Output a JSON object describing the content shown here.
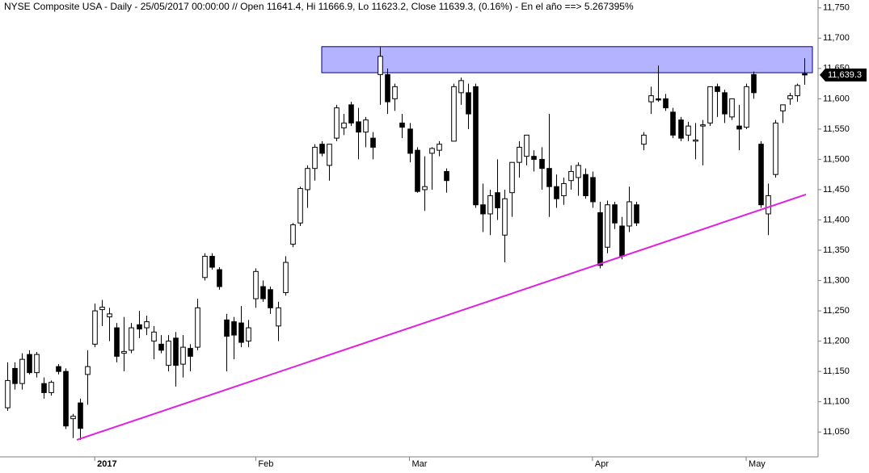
{
  "chart_data": {
    "type": "candlestick",
    "title": "NYSE Composite USA - Daily - 25/05/2017 00:00:00 // Open 11641.4, Hi 11666.9, Lo 11623.2, Close 11639.3, (0.16%) - En el año ==> 5.267395%",
    "categories": [
      null,
      null,
      null,
      null,
      null,
      null,
      null,
      null,
      null,
      null,
      null,
      null,
      "2017",
      null,
      null,
      null,
      null,
      null,
      null,
      null,
      null,
      null,
      null,
      null,
      null,
      null,
      null,
      null,
      null,
      null,
      null,
      null,
      null,
      null,
      "Feb",
      null,
      null,
      null,
      null,
      null,
      null,
      null,
      null,
      null,
      null,
      null,
      null,
      null,
      null,
      null,
      null,
      null,
      null,
      null,
      null,
      "Mar",
      null,
      null,
      null,
      null,
      null,
      null,
      null,
      null,
      null,
      null,
      null,
      null,
      null,
      null,
      null,
      null,
      null,
      null,
      null,
      null,
      null,
      null,
      null,
      null,
      "Apr",
      null,
      null,
      null,
      null,
      null,
      null,
      null,
      null,
      null,
      null,
      null,
      null,
      null,
      null,
      null,
      null,
      null,
      null,
      null,
      null,
      "May",
      null,
      null,
      null,
      null,
      null,
      null,
      null,
      null
    ],
    "open": [
      11090,
      11155,
      11130,
      11178,
      11148,
      11130,
      11115,
      11158,
      11150,
      11072,
      11098,
      11145,
      11195,
      11252,
      11240,
      11222,
      11180,
      11185,
      11227,
      11222,
      11200,
      11195,
      11160,
      11205,
      11162,
      11188,
      11190,
      11305,
      11340,
      11318,
      11235,
      11232,
      11230,
      11200,
      11270,
      11290,
      11285,
      11225,
      11280,
      11360,
      11395,
      11450,
      11485,
      11525,
      11490,
      11535,
      11552,
      11590,
      11562,
      11545,
      11535,
      11640,
      11640,
      11600,
      11560,
      11550,
      11515,
      11450,
      11510,
      11515,
      11480,
      11530,
      11610,
      11610,
      11620,
      11425,
      11410,
      11445,
      11375,
      11445,
      11495,
      11505,
      11505,
      11500,
      11485,
      11455,
      11440,
      11465,
      11470,
      11475,
      11470,
      11412,
      11355,
      11425,
      11390,
      11390,
      11425,
      11525,
      11595,
      11600,
      11600,
      11578,
      11565,
      11540,
      11530,
      11555,
      11560,
      11620,
      11610,
      11570,
      11555,
      11553,
      11640,
      11525,
      11410,
      11475,
      11580,
      11600,
      11605,
      11641.4
    ],
    "high": [
      11165,
      11165,
      11180,
      11185,
      11182,
      11140,
      11135,
      11162,
      11155,
      11080,
      11105,
      11185,
      11262,
      11268,
      11255,
      11230,
      11240,
      11230,
      11250,
      11242,
      11225,
      11210,
      11210,
      11215,
      11210,
      11195,
      11270,
      11345,
      11345,
      11322,
      11245,
      11240,
      11258,
      11235,
      11320,
      11300,
      11290,
      11265,
      11340,
      11395,
      11455,
      11490,
      11525,
      11530,
      11525,
      11590,
      11575,
      11595,
      11585,
      11570,
      11545,
      11685,
      11650,
      11625,
      11575,
      11560,
      11520,
      11505,
      11520,
      11530,
      11485,
      11625,
      11635,
      11625,
      11625,
      11460,
      11450,
      11500,
      11450,
      11495,
      11530,
      11540,
      11515,
      11520,
      11575,
      11475,
      11470,
      11490,
      11495,
      11485,
      11480,
      11430,
      11432,
      11430,
      11405,
      11455,
      11430,
      11545,
      11620,
      11655,
      11608,
      11585,
      11570,
      11562,
      11560,
      11565,
      11620,
      11625,
      11615,
      11600,
      11590,
      11625,
      11645,
      11530,
      11460,
      11565,
      11590,
      11610,
      11625,
      11666.9
    ],
    "low": [
      11085,
      11120,
      11120,
      11145,
      11140,
      11105,
      11110,
      11145,
      11055,
      11040,
      11037,
      11095,
      11190,
      11225,
      11200,
      11165,
      11150,
      11180,
      11205,
      11210,
      11170,
      11180,
      11150,
      11125,
      11140,
      11150,
      11185,
      11300,
      11318,
      11285,
      11150,
      11170,
      11190,
      11190,
      11255,
      11265,
      11245,
      11200,
      11275,
      11355,
      11390,
      11420,
      11465,
      11505,
      11465,
      11530,
      11540,
      11555,
      11500,
      11520,
      11500,
      11590,
      11575,
      11580,
      11535,
      11495,
      11445,
      11415,
      11450,
      11505,
      11445,
      11530,
      11590,
      11550,
      11420,
      11380,
      11375,
      11400,
      11330,
      11405,
      11470,
      11490,
      11480,
      11450,
      11405,
      11420,
      11425,
      11450,
      11440,
      11435,
      11420,
      11320,
      11345,
      11385,
      11335,
      11380,
      11390,
      11515,
      11575,
      11595,
      11580,
      11535,
      11530,
      11530,
      11500,
      11490,
      11555,
      11570,
      11560,
      11565,
      11515,
      11550,
      11600,
      11420,
      11375,
      11470,
      11560,
      11590,
      11595,
      11623.2
    ],
    "close": [
      11135,
      11130,
      11170,
      11148,
      11178,
      11115,
      11132,
      11150,
      11060,
      11076,
      11056,
      11158,
      11250,
      11256,
      11245,
      11175,
      11183,
      11222,
      11220,
      11232,
      11215,
      11185,
      11200,
      11160,
      11190,
      11175,
      11255,
      11340,
      11322,
      11290,
      11208,
      11210,
      11198,
      11222,
      11315,
      11270,
      11255,
      11255,
      11330,
      11392,
      11452,
      11485,
      11520,
      11510,
      11525,
      11585,
      11560,
      11560,
      11545,
      11565,
      11520,
      11670,
      11595,
      11620,
      11553,
      11510,
      11447,
      11455,
      11518,
      11525,
      11465,
      11620,
      11630,
      11575,
      11425,
      11410,
      11440,
      11420,
      11435,
      11495,
      11520,
      11540,
      11500,
      11485,
      11455,
      11435,
      11460,
      11480,
      11490,
      11440,
      11430,
      11325,
      11425,
      11395,
      11340,
      11430,
      11395,
      11540,
      11605,
      11598,
      11585,
      11540,
      11535,
      11555,
      11532,
      11557,
      11620,
      11612,
      11575,
      11600,
      11550,
      11620,
      11610,
      11425,
      11440,
      11560,
      11590,
      11605,
      11622,
      11639.3
    ],
    "up_color": "#ffffff",
    "down_color": "#000000",
    "ylim": [
      11009,
      11763
    ],
    "yticks": [
      {
        "value": 11050,
        "label": "11,050"
      },
      {
        "value": 11100,
        "label": "11,100"
      },
      {
        "value": 11150,
        "label": "11,150"
      },
      {
        "value": 11200,
        "label": "11,200"
      },
      {
        "value": 11250,
        "label": "11,250"
      },
      {
        "value": 11300,
        "label": "11,300"
      },
      {
        "value": 11350,
        "label": "11,350"
      },
      {
        "value": 11400,
        "label": "11,400"
      },
      {
        "value": 11450,
        "label": "11,450"
      },
      {
        "value": 11500,
        "label": "11,500"
      },
      {
        "value": 11550,
        "label": "11,550"
      },
      {
        "value": 11600,
        "label": "11,600"
      },
      {
        "value": 11650,
        "label": "11,650"
      },
      {
        "value": 11700,
        "label": "11,700"
      },
      {
        "value": 11750,
        "label": "11,750"
      }
    ],
    "last_price": {
      "value": 11639.3,
      "label": "11,639.3"
    },
    "resistance_zone": {
      "range": [
        11643,
        11686
      ],
      "color": "#b3b3ff"
    },
    "trendline": {
      "range": [
        11037,
        11442
      ],
      "color": "#e020e0"
    }
  }
}
